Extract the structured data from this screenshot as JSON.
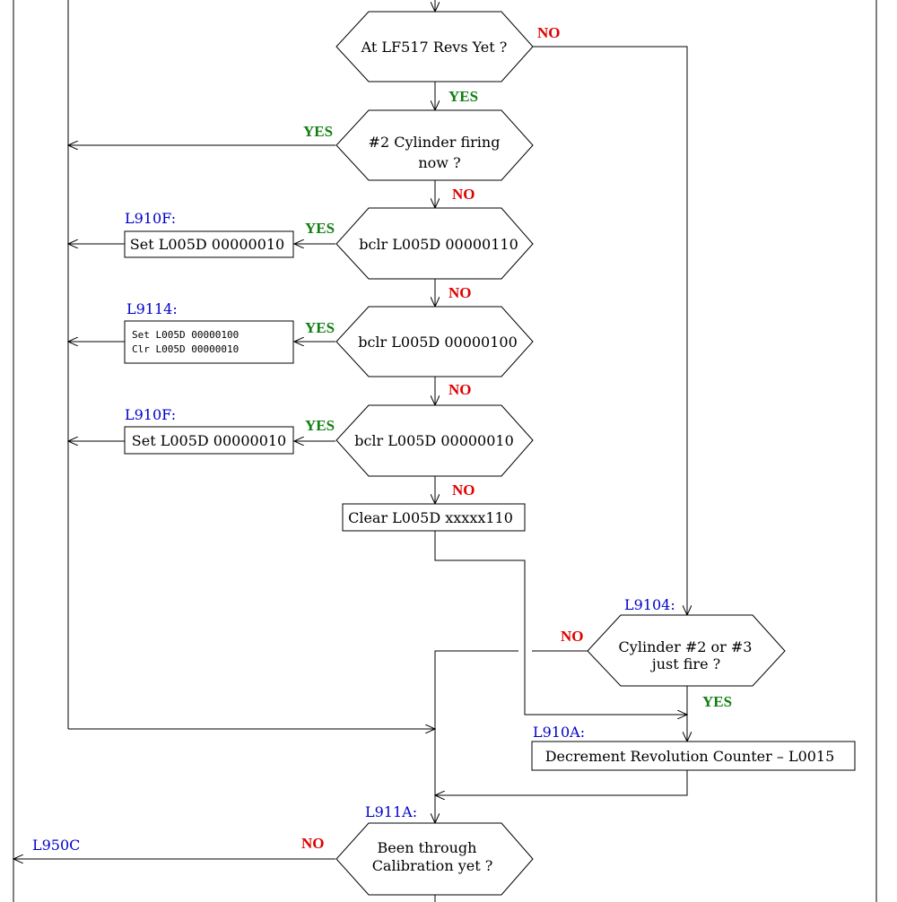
{
  "colors": {
    "yes": "#107f10",
    "no": "#e00000",
    "label": "#0000cc",
    "line": "#000000"
  },
  "decisions": {
    "lf517": "At LF517 Revs Yet ?",
    "cyl2_line1": "#2 Cylinder firing",
    "cyl2_line2": "now ?",
    "bclr110": "bclr L005D 00000110",
    "bclr100": "bclr L005D 00000100",
    "bclr010": "bclr L005D 00000010",
    "cyl23_line1": "Cylinder #2 or #3",
    "cyl23_line2": "just fire ?",
    "calib_line1": "Been through",
    "calib_line2": "Calibration yet ?"
  },
  "processes": {
    "set010_a": "Set L005D 00000010",
    "l9114_line1": "Set L005D 00000100",
    "l9114_line2": "Clr L005D 00000010",
    "set010_b": "Set L005D 00000010",
    "clear110": "Clear L005D xxxxx110",
    "decrement": "Decrement Revolution Counter – L0015"
  },
  "labels": {
    "l910f_a": "L910F:",
    "l9114": "L9114:",
    "l910f_b": "L910F:",
    "l9104": "L9104:",
    "l910a": "L910A:",
    "l911a": "L911A:",
    "l950c": "L950C"
  },
  "branches": {
    "lf517_no": "NO",
    "lf517_yes": "YES",
    "cyl2_yes": "YES",
    "cyl2_no": "NO",
    "bclr110_yes": "YES",
    "bclr110_no": "NO",
    "bclr100_yes": "YES",
    "bclr100_no": "NO",
    "bclr010_yes": "YES",
    "bclr010_no": "NO",
    "cyl23_no": "NO",
    "cyl23_yes": "YES",
    "calib_no": "NO"
  }
}
